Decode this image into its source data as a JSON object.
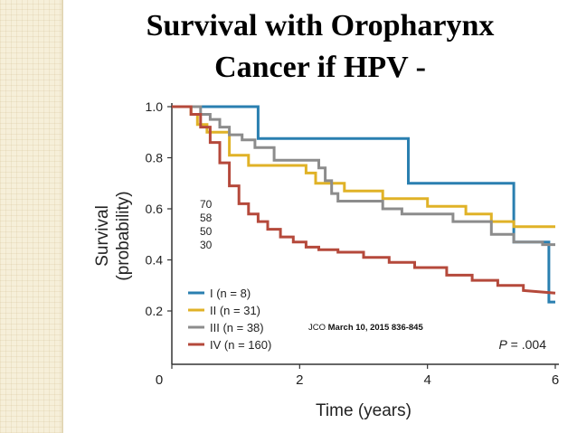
{
  "slide": {
    "title_line1": "Survival with Oropharynx",
    "title_line2": "Cancer if HPV -"
  },
  "chart_data": {
    "type": "line",
    "subtype": "kaplan-meier-step",
    "title": "",
    "xlabel": "Time (years)",
    "ylabel_line1": "Survival",
    "ylabel_line2": "(probability)",
    "xlim": [
      0,
      6
    ],
    "ylim": [
      0.1,
      1.0
    ],
    "x_ticks": [
      0,
      2,
      4,
      6
    ],
    "x_tick_labels": [
      "0",
      "2",
      "4",
      "6"
    ],
    "y_ticks": [
      0.2,
      0.4,
      0.6,
      0.8,
      1.0
    ],
    "y_tick_labels": [
      "0.2",
      "0.4",
      "0.6",
      "0.8",
      "1.0"
    ],
    "grid": false,
    "legend_position": "bottom-left",
    "at_risk_numbers": [
      "70",
      "58",
      "50",
      "30"
    ],
    "p_value_label": "P",
    "p_value": "= .004",
    "citation_prefix": "JCO ",
    "citation_detail": "March 10, 2015 836-845",
    "series": [
      {
        "name": "I (n = 8)",
        "color": "#2a7fb0",
        "x": [
          0,
          1.35,
          1.35,
          3.7,
          3.7,
          5.35,
          5.35,
          5.9,
          5.9,
          6.0
        ],
        "y": [
          1.0,
          1.0,
          0.875,
          0.875,
          0.7,
          0.7,
          0.47,
          0.47,
          0.235,
          0.235
        ]
      },
      {
        "name": "II (n = 31)",
        "color": "#e0b227",
        "x": [
          0,
          0.3,
          0.3,
          0.4,
          0.4,
          0.55,
          0.55,
          0.9,
          0.9,
          1.2,
          1.2,
          2.1,
          2.1,
          2.25,
          2.25,
          2.7,
          2.7,
          3.3,
          3.3,
          4.0,
          4.0,
          4.6,
          4.6,
          5.0,
          5.0,
          5.35,
          5.35,
          6.0
        ],
        "y": [
          1.0,
          1.0,
          0.97,
          0.97,
          0.93,
          0.93,
          0.9,
          0.9,
          0.81,
          0.81,
          0.77,
          0.77,
          0.74,
          0.74,
          0.7,
          0.7,
          0.67,
          0.67,
          0.64,
          0.64,
          0.61,
          0.61,
          0.58,
          0.58,
          0.55,
          0.55,
          0.53,
          0.53
        ]
      },
      {
        "name": "III (n = 38)",
        "color": "#8c8c8c",
        "x": [
          0,
          0.45,
          0.45,
          0.6,
          0.6,
          0.75,
          0.75,
          0.9,
          0.9,
          1.1,
          1.1,
          1.3,
          1.3,
          1.6,
          1.6,
          2.3,
          2.3,
          2.4,
          2.4,
          2.5,
          2.5,
          2.6,
          2.6,
          3.3,
          3.3,
          3.6,
          3.6,
          4.4,
          4.4,
          5.0,
          5.0,
          5.35,
          5.35,
          5.8,
          5.8,
          6.0
        ],
        "y": [
          1.0,
          1.0,
          0.97,
          0.97,
          0.95,
          0.95,
          0.92,
          0.92,
          0.89,
          0.89,
          0.87,
          0.87,
          0.84,
          0.84,
          0.79,
          0.79,
          0.76,
          0.76,
          0.71,
          0.71,
          0.66,
          0.66,
          0.63,
          0.63,
          0.6,
          0.6,
          0.58,
          0.58,
          0.55,
          0.55,
          0.5,
          0.5,
          0.47,
          0.47,
          0.46,
          0.46
        ]
      },
      {
        "name": "IV (n = 160)",
        "color": "#b5493b",
        "x": [
          0,
          0.3,
          0.3,
          0.45,
          0.45,
          0.6,
          0.6,
          0.75,
          0.75,
          0.9,
          0.9,
          1.05,
          1.05,
          1.2,
          1.2,
          1.35,
          1.35,
          1.5,
          1.5,
          1.7,
          1.7,
          1.9,
          1.9,
          2.1,
          2.1,
          2.3,
          2.3,
          2.6,
          2.6,
          3.0,
          3.0,
          3.4,
          3.4,
          3.8,
          3.8,
          4.3,
          4.3,
          4.7,
          4.7,
          5.1,
          5.1,
          5.5,
          5.5,
          6.0
        ],
        "y": [
          1.0,
          1.0,
          0.97,
          0.97,
          0.92,
          0.92,
          0.86,
          0.86,
          0.78,
          0.78,
          0.69,
          0.69,
          0.62,
          0.62,
          0.58,
          0.58,
          0.55,
          0.55,
          0.52,
          0.52,
          0.49,
          0.49,
          0.47,
          0.47,
          0.45,
          0.45,
          0.44,
          0.44,
          0.43,
          0.43,
          0.41,
          0.41,
          0.39,
          0.39,
          0.37,
          0.37,
          0.34,
          0.34,
          0.32,
          0.32,
          0.3,
          0.3,
          0.28,
          0.27
        ]
      }
    ]
  }
}
